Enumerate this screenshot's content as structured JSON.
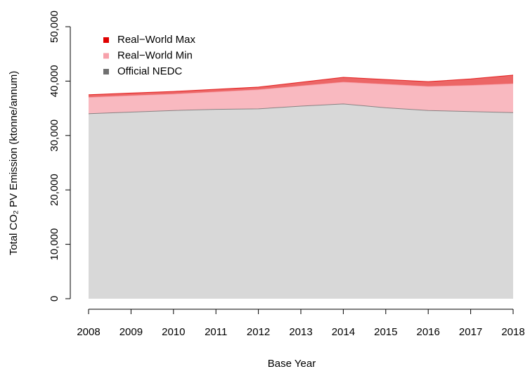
{
  "chart_data": {
    "type": "area",
    "x_label": "Base Year",
    "y_label": "Total CO₂ PV Emission (ktonne/annum)",
    "categories": [
      "2008",
      "2009",
      "2010",
      "2011",
      "2012",
      "2013",
      "2014",
      "2015",
      "2016",
      "2017",
      "2018"
    ],
    "series": [
      {
        "name": "Real−World Max",
        "color": "#e00000",
        "values": [
          37500,
          37800,
          38100,
          38500,
          38900,
          39800,
          40700,
          40300,
          39900,
          40400,
          41100
        ]
      },
      {
        "name": "Real−World Min",
        "color": "#f7a1ab",
        "values": [
          37000,
          37300,
          37600,
          38000,
          38400,
          39100,
          39800,
          39400,
          39000,
          39200,
          39500
        ]
      },
      {
        "name": "Official NEDC",
        "color": "#707070",
        "values": [
          34000,
          34300,
          34600,
          34800,
          34900,
          35400,
          35800,
          35100,
          34600,
          34400,
          34200
        ]
      }
    ],
    "ylim": [
      0,
      50000
    ],
    "yticks": [
      {
        "value": 0,
        "label": "0"
      },
      {
        "value": 10000,
        "label": "10,000"
      },
      {
        "value": 20000,
        "label": "20,000"
      },
      {
        "value": 30000,
        "label": "30,000"
      },
      {
        "value": 40000,
        "label": "40,000"
      },
      {
        "value": 50000,
        "label": "50,000"
      }
    ],
    "legend": "top-left"
  }
}
